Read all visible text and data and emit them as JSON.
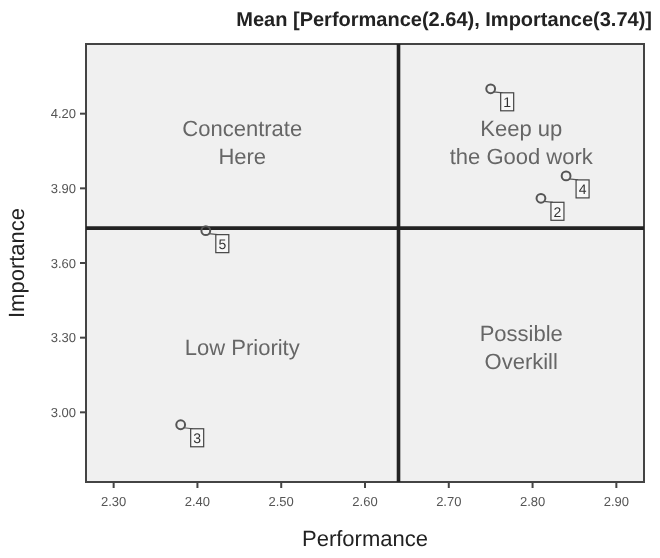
{
  "chart_data": {
    "type": "scatter",
    "title": "Mean [Performance(2.64), Importance(3.74)]",
    "xlabel": "Performance",
    "ylabel": "Importance",
    "x": [
      2.75,
      2.81,
      2.38,
      2.84,
      2.41
    ],
    "values": [
      4.3,
      3.86,
      2.95,
      3.95,
      3.73
    ],
    "color": "#555555",
    "marker": "circle",
    "grid": false,
    "xlim": [
      2.267,
      2.933
    ],
    "xticks": [
      {
        "value": 2.3,
        "label": "2.30"
      },
      {
        "value": 2.4,
        "label": "2.40"
      },
      {
        "value": 2.5,
        "label": "2.50"
      },
      {
        "value": 2.6,
        "label": "2.60"
      },
      {
        "value": 2.7,
        "label": "2.70"
      },
      {
        "value": 2.8,
        "label": "2.80"
      },
      {
        "value": 2.9,
        "label": "2.90"
      }
    ],
    "ylim": [
      2.72,
      4.48
    ],
    "yticks": [
      {
        "value": 3.0,
        "label": "3.00"
      },
      {
        "value": 3.3,
        "label": "3.30"
      },
      {
        "value": 3.6,
        "label": "3.60"
      },
      {
        "value": 3.9,
        "label": "3.90"
      },
      {
        "value": 4.2,
        "label": "4.20"
      }
    ],
    "ref_lines": [
      {
        "axis": "x",
        "value": 2.64,
        "color": "#222222"
      },
      {
        "axis": "y",
        "value": 3.74,
        "color": "#222222"
      }
    ],
    "annotations": [
      "Concentrate\nHere",
      "Keep up\nthe Good work",
      "Low Priority",
      "Possible\nOverkill",
      {
        "text": "1",
        "x": 2.75,
        "y": 4.3
      },
      {
        "text": "2",
        "x": 2.81,
        "y": 3.86
      },
      {
        "text": "3",
        "x": 2.38,
        "y": 2.95
      },
      {
        "text": "4",
        "x": 2.84,
        "y": 3.95
      },
      {
        "text": "5",
        "x": 2.41,
        "y": 3.73
      }
    ]
  }
}
